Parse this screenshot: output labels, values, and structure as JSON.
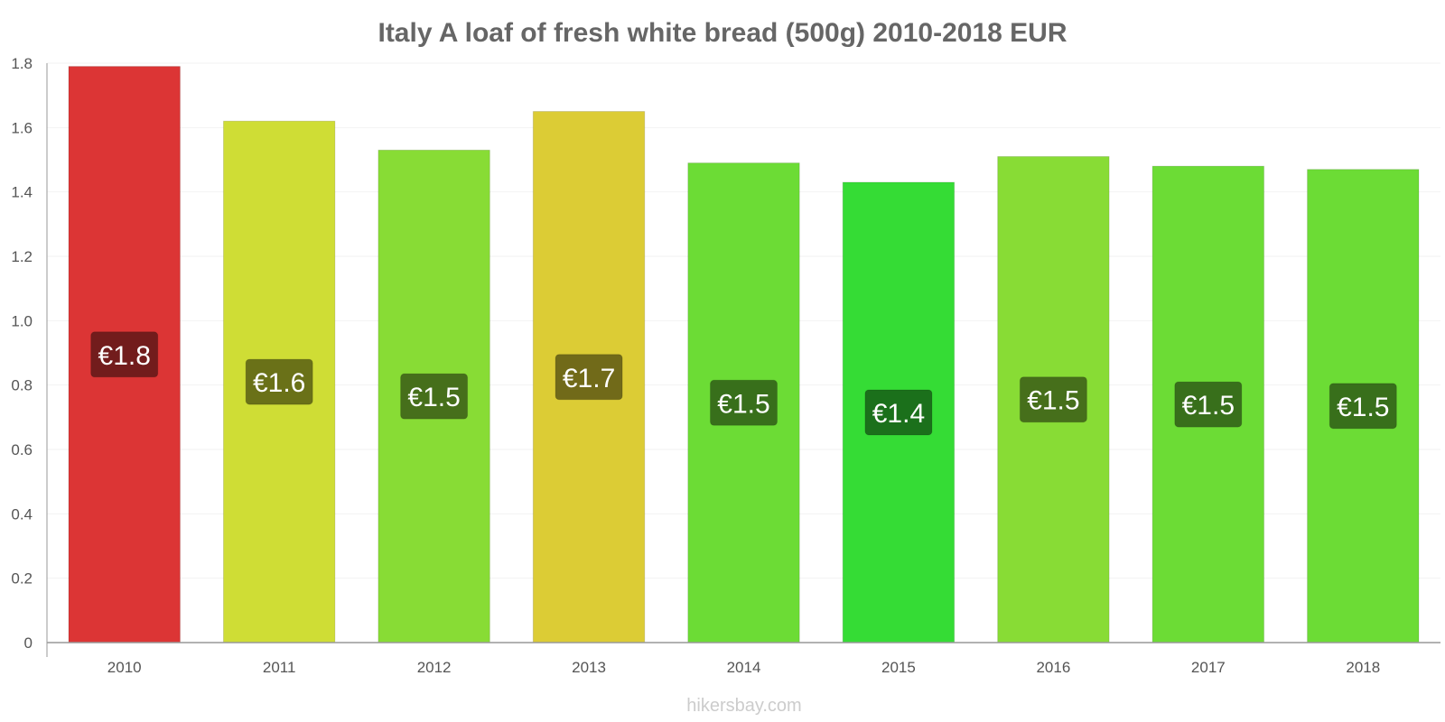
{
  "chart_data": {
    "type": "bar",
    "title": "Italy A loaf of fresh white bread (500g) 2010-2018 EUR",
    "xlabel": "",
    "ylabel": "",
    "categories": [
      "2010",
      "2011",
      "2012",
      "2013",
      "2014",
      "2015",
      "2016",
      "2017",
      "2018"
    ],
    "values": [
      1.79,
      1.62,
      1.53,
      1.65,
      1.49,
      1.43,
      1.51,
      1.48,
      1.47
    ],
    "value_labels": [
      "€1.8",
      "€1.6",
      "€1.5",
      "€1.7",
      "€1.5",
      "€1.4",
      "€1.5",
      "€1.5",
      "€1.5"
    ],
    "bar_colors": [
      "#dc3535",
      "#cfdd35",
      "#88dc35",
      "#dccc35",
      "#6cdc35",
      "#35dc35",
      "#88dc35",
      "#6cdc35",
      "#6cdc35"
    ],
    "label_colors": [
      "#721c1c",
      "#6a7118",
      "#466f1b",
      "#716a19",
      "#386f1b",
      "#1b701b",
      "#466f1b",
      "#386f1b",
      "#386f1b"
    ],
    "yticks": [
      "0",
      "0.2",
      "0.4",
      "0.6",
      "0.8",
      "1.0",
      "1.2",
      "1.4",
      "1.6",
      "1.8"
    ],
    "ylim": [
      0,
      1.8
    ],
    "grid": true,
    "legend": "none"
  },
  "credit": "hikersbay.com"
}
